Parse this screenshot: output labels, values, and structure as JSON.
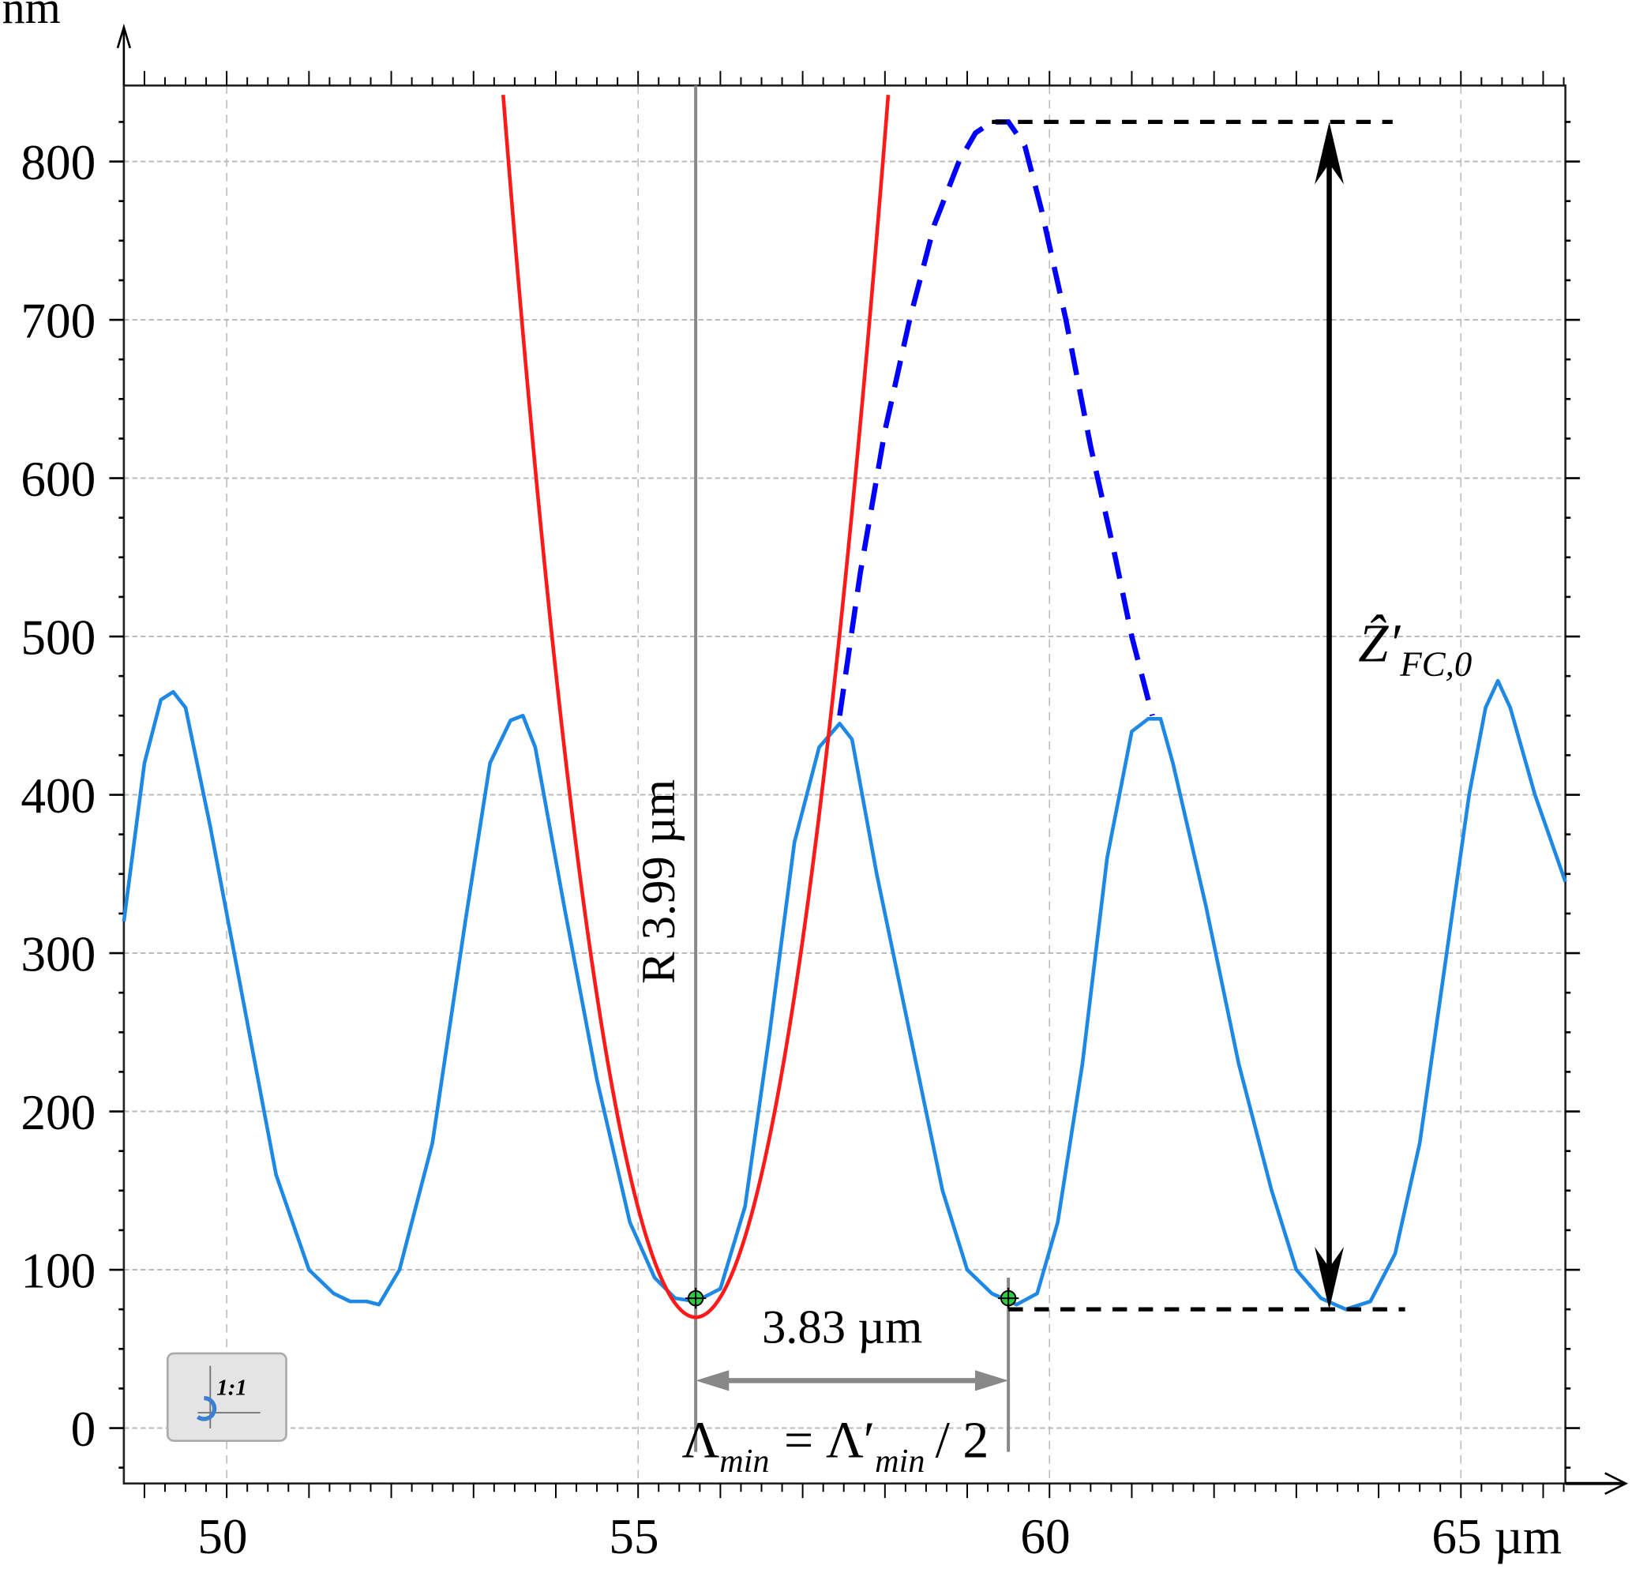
{
  "chart_data": {
    "type": "line",
    "title": "",
    "xlabel": "µm",
    "ylabel": "nm",
    "xlim": [
      48.75,
      66.27
    ],
    "ylim": [
      -35,
      848
    ],
    "grid": true,
    "x_ticks": [
      50,
      55,
      60,
      65
    ],
    "x_tick_labels": [
      "50",
      "55",
      "60",
      "65 µm"
    ],
    "y_ticks": [
      0,
      100,
      200,
      300,
      400,
      500,
      600,
      700,
      800
    ],
    "y_tick_labels": [
      "0",
      "100",
      "200",
      "300",
      "400",
      "500",
      "600",
      "700",
      "800"
    ],
    "series": [
      {
        "name": "profile",
        "color": "#1e88e5",
        "style": "solid",
        "x": [
          48.75,
          49.0,
          49.2,
          49.35,
          49.5,
          49.8,
          50.2,
          50.6,
          51.0,
          51.3,
          51.5,
          51.7,
          51.85,
          52.1,
          52.5,
          52.9,
          53.2,
          53.45,
          53.6,
          53.75,
          54.1,
          54.5,
          54.9,
          55.2,
          55.45,
          55.7,
          56.0,
          56.3,
          56.6,
          56.9,
          57.2,
          57.45,
          57.6,
          57.9,
          58.3,
          58.7,
          59.0,
          59.3,
          59.6,
          59.85,
          60.1,
          60.4,
          60.7,
          61.0,
          61.2,
          61.35,
          61.5,
          61.9,
          62.3,
          62.7,
          63.0,
          63.3,
          63.6,
          63.9,
          64.2,
          64.5,
          64.8,
          65.1,
          65.3,
          65.45,
          65.6,
          65.9,
          66.27
        ],
        "y": [
          320,
          420,
          460,
          465,
          455,
          380,
          270,
          160,
          100,
          85,
          80,
          80,
          78,
          100,
          180,
          320,
          420,
          447,
          450,
          430,
          330,
          220,
          130,
          95,
          82,
          80,
          88,
          140,
          250,
          370,
          430,
          445,
          435,
          350,
          250,
          150,
          100,
          85,
          78,
          85,
          130,
          230,
          360,
          440,
          448,
          448,
          420,
          330,
          230,
          150,
          100,
          82,
          75,
          80,
          110,
          180,
          290,
          400,
          455,
          472,
          455,
          400,
          345
        ]
      },
      {
        "name": "parabola fit",
        "color": "#ff1a1a",
        "style": "solid",
        "vertex": [
          55.7,
          70
        ],
        "curvature": 141
      },
      {
        "name": "envelope",
        "color": "#0000ff",
        "style": "dashed",
        "x": [
          57.45,
          57.7,
          58.0,
          58.3,
          58.6,
          58.9,
          59.1,
          59.3,
          59.5,
          59.7,
          59.9,
          60.2,
          60.5,
          60.8,
          61.0,
          61.25
        ],
        "y": [
          450,
          540,
          630,
          700,
          760,
          800,
          818,
          825,
          825,
          810,
          770,
          700,
          620,
          550,
          500,
          450
        ]
      }
    ],
    "annotations": {
      "radius_label": "R 3.99 µm",
      "distance_label": "3.83 µm",
      "formula": {
        "lhs": "Λ",
        "lhs_sub": "min",
        "eq": "=",
        "rhs": "Λ′",
        "rhs_sub": "min",
        "tail": "/ 2"
      },
      "height_label": "Ẑ′",
      "height_sub": "FC,0",
      "markers": [
        [
          55.7,
          82
        ],
        [
          59.5,
          82
        ]
      ],
      "dimension_y": 30,
      "height_range": [
        75,
        825
      ],
      "height_arrow_x": 63.4,
      "button_label": "1:1"
    }
  }
}
